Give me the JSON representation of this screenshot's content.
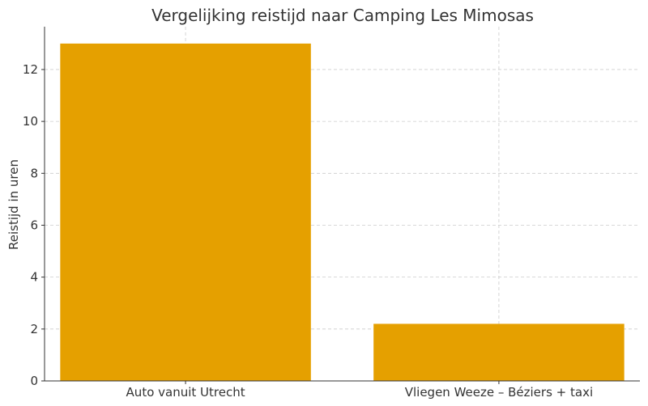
{
  "chart_data": {
    "type": "bar",
    "title": "Vergelijking reistijd naar Camping Les Mimosas",
    "xlabel": "",
    "ylabel": "Reistijd in uren",
    "categories": [
      "Auto vanuit Utrecht",
      "Vliegen Weeze – Béziers + taxi"
    ],
    "values": [
      13,
      2.2
    ],
    "ylim": [
      0,
      13.65
    ],
    "yticks": [
      0,
      2,
      4,
      6,
      8,
      10,
      12
    ],
    "grid": true,
    "bar_color": "#E5A000"
  }
}
